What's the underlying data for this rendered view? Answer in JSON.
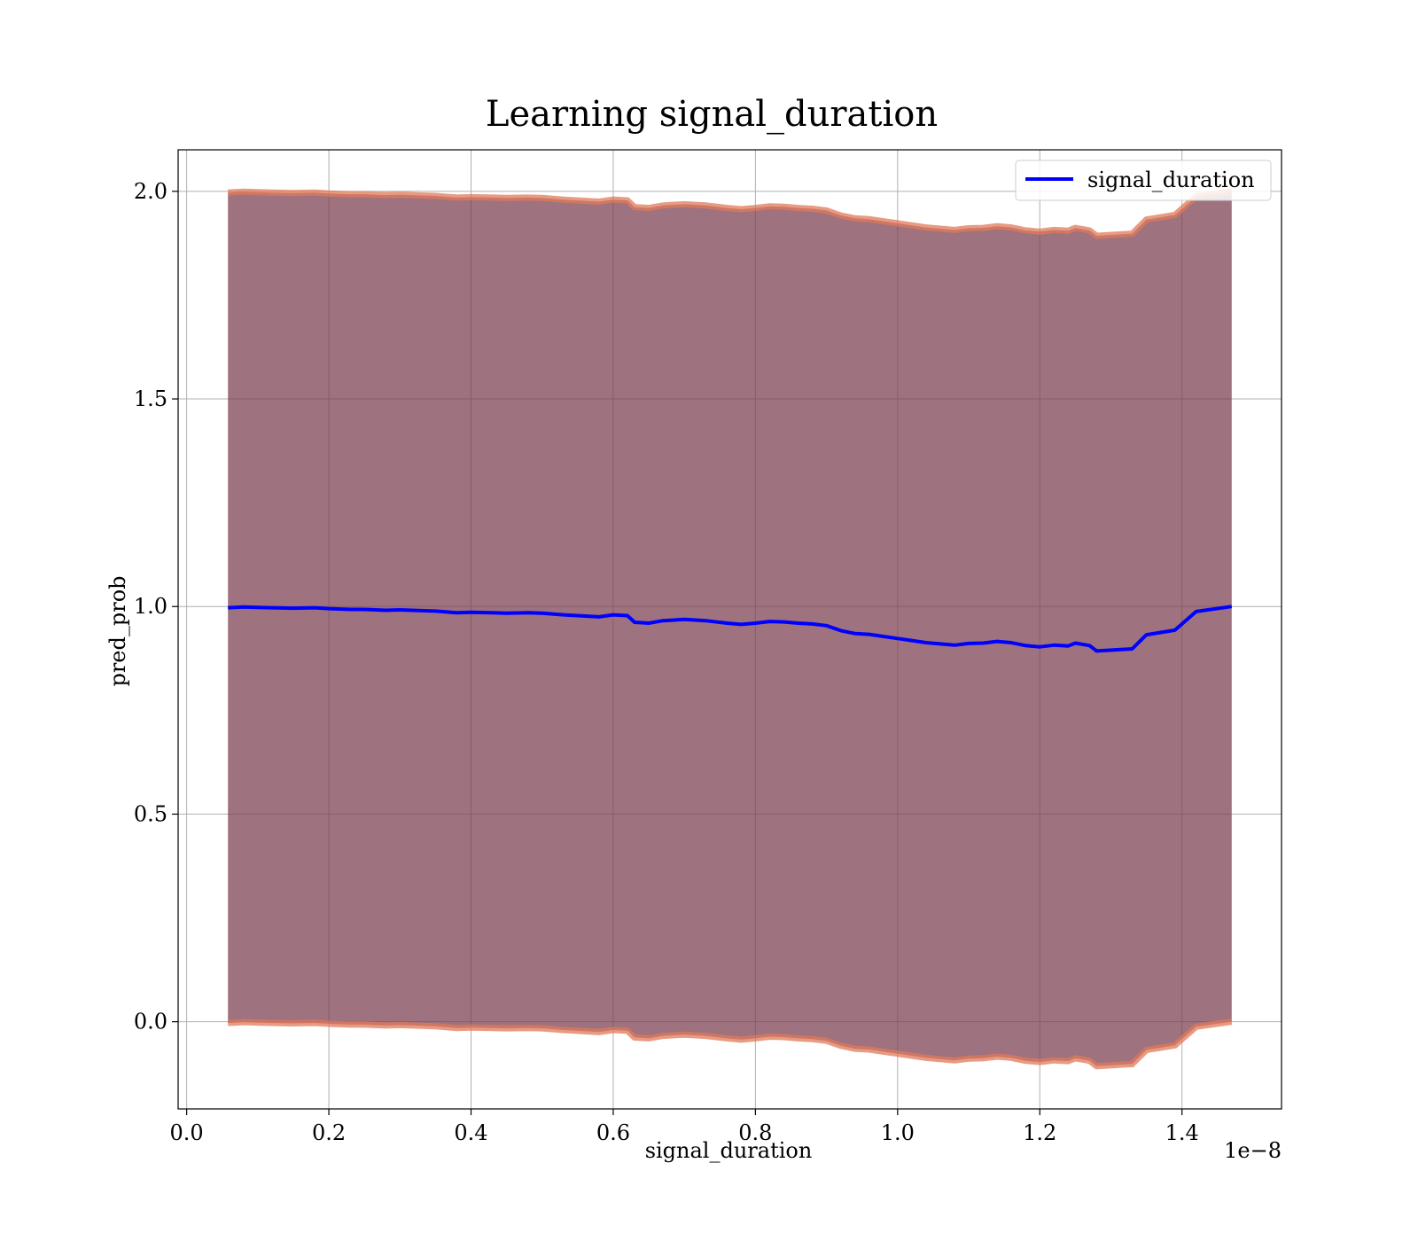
{
  "figure": {
    "title": "Learning signal_duration",
    "xlabel": "signal_duration",
    "ylabel": "pred_prob",
    "x_offset_label": "1e−8"
  },
  "chart_data": {
    "type": "line",
    "title": "Learning signal_duration",
    "xlabel": "signal_duration",
    "ylabel": "pred_prob",
    "x_scale_note": "1e−8",
    "xlim": [
      -0.012,
      1.54
    ],
    "ylim": [
      -0.21,
      2.1
    ],
    "xticks": [
      0.0,
      0.2,
      0.4,
      0.6,
      0.8,
      1.0,
      1.2,
      1.4
    ],
    "xtick_labels": [
      "0.0",
      "0.2",
      "0.4",
      "0.6",
      "0.8",
      "1.0",
      "1.2",
      "1.4"
    ],
    "yticks": [
      0.0,
      0.5,
      1.0,
      1.5,
      2.0
    ],
    "ytick_labels": [
      "0.0",
      "0.5",
      "1.0",
      "1.5",
      "2.0"
    ],
    "grid": true,
    "legend": {
      "position": "top-right",
      "entries": [
        "signal_duration"
      ]
    },
    "series": [
      {
        "name": "signal_duration",
        "color": "#0000ff",
        "x": [
          0.058,
          0.08,
          0.1,
          0.12,
          0.15,
          0.18,
          0.2,
          0.23,
          0.25,
          0.28,
          0.3,
          0.33,
          0.35,
          0.38,
          0.4,
          0.43,
          0.45,
          0.48,
          0.5,
          0.53,
          0.55,
          0.58,
          0.6,
          0.62,
          0.63,
          0.65,
          0.67,
          0.7,
          0.73,
          0.76,
          0.78,
          0.8,
          0.82,
          0.84,
          0.86,
          0.88,
          0.9,
          0.92,
          0.94,
          0.96,
          0.98,
          1.0,
          1.02,
          1.04,
          1.06,
          1.08,
          1.1,
          1.12,
          1.14,
          1.16,
          1.18,
          1.2,
          1.22,
          1.24,
          1.25,
          1.27,
          1.28,
          1.33,
          1.35,
          1.39,
          1.42,
          1.47
        ],
        "values": [
          0.997,
          0.999,
          0.998,
          0.997,
          0.996,
          0.997,
          0.995,
          0.993,
          0.993,
          0.991,
          0.992,
          0.99,
          0.989,
          0.985,
          0.986,
          0.985,
          0.984,
          0.985,
          0.984,
          0.98,
          0.978,
          0.975,
          0.98,
          0.978,
          0.962,
          0.96,
          0.966,
          0.969,
          0.966,
          0.96,
          0.957,
          0.96,
          0.964,
          0.963,
          0.96,
          0.958,
          0.954,
          0.942,
          0.935,
          0.933,
          0.928,
          0.923,
          0.918,
          0.913,
          0.91,
          0.907,
          0.911,
          0.912,
          0.916,
          0.913,
          0.906,
          0.903,
          0.907,
          0.905,
          0.912,
          0.906,
          0.893,
          0.898,
          0.932,
          0.943,
          0.988,
          1.0
        ]
      }
    ],
    "band": {
      "color": "#7a3c4e",
      "edge_color": "#e07a5a",
      "lower_offset": -1.0,
      "upper_offset": 1.0
    }
  }
}
